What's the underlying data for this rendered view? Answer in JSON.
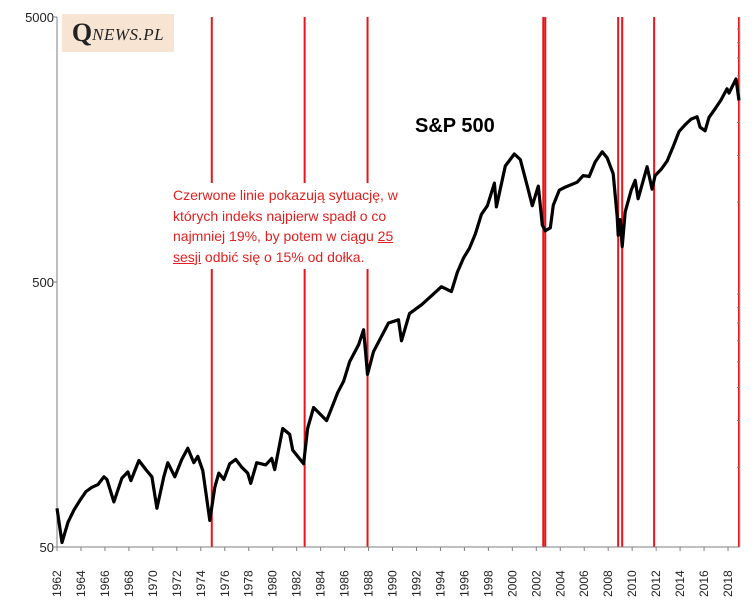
{
  "logo": {
    "q": "Q",
    "rest": "NEWS.PL"
  },
  "annotation": {
    "part1": "Czerwone linie pokazują sytuację, w których indeks najpierw spadł o co najmniej 19%, by potem w ciągu ",
    "underlined": "25 sesji",
    "part2": " odbić się o 15% od dołka."
  },
  "colors": {
    "line": "#000000",
    "marker": "#e8161c",
    "axis": "#7f7f7f",
    "annotation_text": "#e02020",
    "logo_bg": "#f7e4d3"
  },
  "chart_data": {
    "type": "line",
    "title": "S&P 500",
    "xlabel": "",
    "ylabel": "",
    "y_scale": "log",
    "ylim": [
      50,
      5000
    ],
    "xlim": [
      "1962-01",
      "2019-01"
    ],
    "yticks": [
      {
        "value": 50,
        "label": "50"
      },
      {
        "value": 500,
        "label": "500"
      },
      {
        "value": 5000,
        "label": "5000"
      }
    ],
    "xticks": [
      "1962",
      "1964",
      "1966",
      "1968",
      "1970",
      "1972",
      "1974",
      "1976",
      "1978",
      "1980",
      "1982",
      "1984",
      "1986",
      "1988",
      "1990",
      "1992",
      "1994",
      "1996",
      "1998",
      "2000",
      "2002",
      "2004",
      "2006",
      "2008",
      "2010",
      "2012",
      "2014",
      "2016",
      "2018"
    ],
    "grid": false,
    "series": [
      {
        "points": [
          [
            "1962-01",
            70
          ],
          [
            "1962-06",
            52
          ],
          [
            "1962-12",
            62
          ],
          [
            "1963-06",
            69
          ],
          [
            "1963-12",
            75
          ],
          [
            "1964-06",
            81
          ],
          [
            "1964-12",
            84
          ],
          [
            "1965-06",
            86
          ],
          [
            "1965-12",
            92
          ],
          [
            "1966-03",
            90
          ],
          [
            "1966-10",
            74
          ],
          [
            "1967-06",
            91
          ],
          [
            "1967-12",
            96
          ],
          [
            "1968-03",
            89
          ],
          [
            "1968-11",
            106
          ],
          [
            "1969-06",
            98
          ],
          [
            "1969-12",
            92
          ],
          [
            "1970-05",
            70
          ],
          [
            "1970-12",
            92
          ],
          [
            "1971-04",
            104
          ],
          [
            "1971-11",
            92
          ],
          [
            "1972-06",
            107
          ],
          [
            "1972-12",
            118
          ],
          [
            "1973-06",
            104
          ],
          [
            "1973-10",
            110
          ],
          [
            "1974-03",
            97
          ],
          [
            "1974-10",
            63
          ],
          [
            "1975-03",
            84
          ],
          [
            "1975-07",
            95
          ],
          [
            "1975-12",
            90
          ],
          [
            "1976-06",
            103
          ],
          [
            "1976-12",
            107
          ],
          [
            "1977-06",
            100
          ],
          [
            "1977-12",
            95
          ],
          [
            "1978-03",
            87
          ],
          [
            "1978-09",
            104
          ],
          [
            "1979-06",
            102
          ],
          [
            "1979-12",
            108
          ],
          [
            "1980-03",
            98
          ],
          [
            "1980-11",
            140
          ],
          [
            "1981-06",
            133
          ],
          [
            "1981-09",
            116
          ],
          [
            "1982-08",
            103
          ],
          [
            "1982-12",
            140
          ],
          [
            "1983-06",
            168
          ],
          [
            "1984-07",
            150
          ],
          [
            "1984-12",
            167
          ],
          [
            "1985-06",
            191
          ],
          [
            "1985-12",
            211
          ],
          [
            "1986-06",
            250
          ],
          [
            "1987-03",
            290
          ],
          [
            "1987-08",
            330
          ],
          [
            "1987-12",
            224
          ],
          [
            "1988-06",
            273
          ],
          [
            "1989-09",
            350
          ],
          [
            "1990-07",
            360
          ],
          [
            "1990-10",
            300
          ],
          [
            "1991-06",
            380
          ],
          [
            "1992-06",
            410
          ],
          [
            "1993-06",
            450
          ],
          [
            "1994-02",
            480
          ],
          [
            "1994-12",
            460
          ],
          [
            "1995-06",
            545
          ],
          [
            "1995-12",
            615
          ],
          [
            "1996-06",
            670
          ],
          [
            "1996-12",
            760
          ],
          [
            "1997-06",
            900
          ],
          [
            "1997-12",
            970
          ],
          [
            "1998-07",
            1180
          ],
          [
            "1998-09",
            960
          ],
          [
            "1999-06",
            1370
          ],
          [
            "2000-03",
            1520
          ],
          [
            "2000-09",
            1450
          ],
          [
            "2001-04",
            1150
          ],
          [
            "2001-09",
            970
          ],
          [
            "2002-03",
            1150
          ],
          [
            "2002-07",
            820
          ],
          [
            "2002-10",
            780
          ],
          [
            "2003-03",
            800
          ],
          [
            "2003-06",
            975
          ],
          [
            "2003-12",
            1110
          ],
          [
            "2004-06",
            1140
          ],
          [
            "2005-06",
            1190
          ],
          [
            "2005-12",
            1260
          ],
          [
            "2006-06",
            1250
          ],
          [
            "2006-12",
            1420
          ],
          [
            "2007-07",
            1550
          ],
          [
            "2007-12",
            1470
          ],
          [
            "2008-06",
            1280
          ],
          [
            "2008-10",
            880
          ],
          [
            "2008-11",
            750
          ],
          [
            "2009-01",
            860
          ],
          [
            "2009-03",
            680
          ],
          [
            "2009-06",
            920
          ],
          [
            "2009-12",
            1110
          ],
          [
            "2010-04",
            1210
          ],
          [
            "2010-07",
            1030
          ],
          [
            "2011-04",
            1360
          ],
          [
            "2011-09",
            1120
          ],
          [
            "2011-12",
            1260
          ],
          [
            "2012-06",
            1330
          ],
          [
            "2012-12",
            1430
          ],
          [
            "2013-06",
            1620
          ],
          [
            "2013-12",
            1850
          ],
          [
            "2014-06",
            1960
          ],
          [
            "2014-12",
            2060
          ],
          [
            "2015-06",
            2100
          ],
          [
            "2015-09",
            1920
          ],
          [
            "2016-02",
            1860
          ],
          [
            "2016-06",
            2090
          ],
          [
            "2016-12",
            2250
          ],
          [
            "2017-06",
            2430
          ],
          [
            "2017-12",
            2680
          ],
          [
            "2018-02",
            2580
          ],
          [
            "2018-09",
            2920
          ],
          [
            "2018-12",
            2420
          ]
        ]
      }
    ],
    "red_markers": [
      "1974-12",
      "1982-09",
      "1987-12",
      "2002-08",
      "2002-10",
      "2008-11",
      "2009-03",
      "2011-11",
      "2018-12"
    ]
  }
}
